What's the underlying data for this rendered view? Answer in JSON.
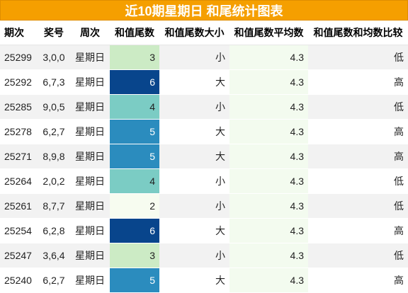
{
  "title": "近10期星期日 和尾统计图表",
  "headers": {
    "issue": "期次",
    "numbers": "奖号",
    "weekday": "周次",
    "sum_tail": "和值尾数",
    "size": "和值尾数大小",
    "average": "和值尾数平均数",
    "compare": "和值尾数和均数比较"
  },
  "colors": {
    "title_bg": "#f59f00",
    "tail_2": "#f7fcf0",
    "tail_3": "#ccebc5",
    "tail_4": "#7bccc4",
    "tail_5": "#2b8cbe",
    "tail_6": "#08458c"
  },
  "rows": [
    {
      "issue": "25299",
      "numbers": "3,0,0",
      "weekday": "星期日",
      "sum_tail": "3",
      "size": "小",
      "average": "4.3",
      "compare": "低"
    },
    {
      "issue": "25292",
      "numbers": "6,7,3",
      "weekday": "星期日",
      "sum_tail": "6",
      "size": "大",
      "average": "4.3",
      "compare": "高"
    },
    {
      "issue": "25285",
      "numbers": "9,0,5",
      "weekday": "星期日",
      "sum_tail": "4",
      "size": "小",
      "average": "4.3",
      "compare": "低"
    },
    {
      "issue": "25278",
      "numbers": "6,2,7",
      "weekday": "星期日",
      "sum_tail": "5",
      "size": "大",
      "average": "4.3",
      "compare": "高"
    },
    {
      "issue": "25271",
      "numbers": "8,9,8",
      "weekday": "星期日",
      "sum_tail": "5",
      "size": "大",
      "average": "4.3",
      "compare": "高"
    },
    {
      "issue": "25264",
      "numbers": "2,0,2",
      "weekday": "星期日",
      "sum_tail": "4",
      "size": "小",
      "average": "4.3",
      "compare": "低"
    },
    {
      "issue": "25261",
      "numbers": "8,7,7",
      "weekday": "星期日",
      "sum_tail": "2",
      "size": "小",
      "average": "4.3",
      "compare": "低"
    },
    {
      "issue": "25254",
      "numbers": "6,2,8",
      "weekday": "星期日",
      "sum_tail": "6",
      "size": "大",
      "average": "4.3",
      "compare": "高"
    },
    {
      "issue": "25247",
      "numbers": "3,6,4",
      "weekday": "星期日",
      "sum_tail": "3",
      "size": "小",
      "average": "4.3",
      "compare": "低"
    },
    {
      "issue": "25240",
      "numbers": "6,2,7",
      "weekday": "星期日",
      "sum_tail": "5",
      "size": "大",
      "average": "4.3",
      "compare": "高"
    }
  ]
}
